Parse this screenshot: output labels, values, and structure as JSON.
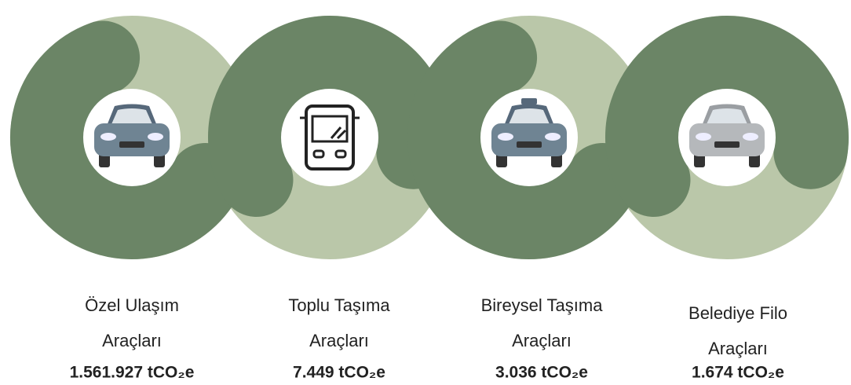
{
  "items": [
    {
      "label_lines": [
        "Özel Ulaşım",
        "Araçları"
      ],
      "value": "1.561.927 tCO₂e"
    },
    {
      "label_lines": [
        "Toplu Taşıma",
        "Araçları"
      ],
      "value": "7.449 tCO₂e"
    },
    {
      "label_lines": [
        "Bireysel Taşıma",
        "Araçları"
      ],
      "value": "3.036 tCO₂e"
    },
    {
      "label_lines": [
        "Belediye Filo",
        "Araçları"
      ],
      "value": "1.674 tCO₂e"
    }
  ]
}
